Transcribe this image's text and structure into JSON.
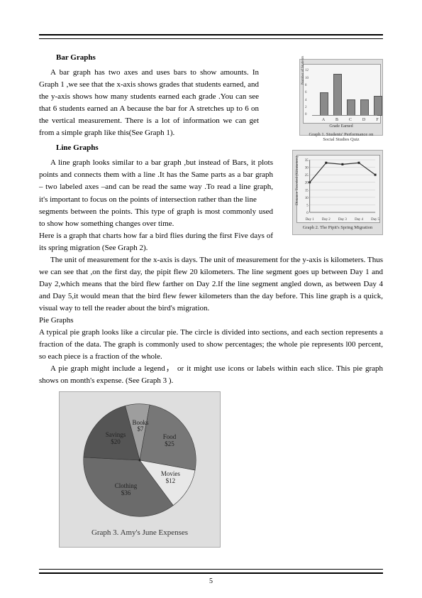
{
  "page_number": "5",
  "sections": {
    "bar": {
      "title": "Bar Graphs",
      "p1": "A bar graph has two axes and uses bars to show amounts. In Graph 1 ,we see that the x-axis shows grades that students earned, and the y-axis shows how many students earned each grade .You can see that 6 students earned an A because the bar for A stretches up to 6 on the vertical measurement. There is a lot of information we can get from a simple graph like this(See Graph 1)."
    },
    "line": {
      "title": "Line Graphs",
      "p1": "A line graph looks similar to a bar graph ,but instead of Bars, it plots points and connects them with a line .It has the Same parts as a bar graph – two labeled axes –and can be read the same way .To read a line graph, it's important to focus on the points of intersection rather than the line",
      "p2": "segments between the points. This type of graph is most commonly used to show how something changes over time.",
      "p3": "Here is a graph that charts how far a bird flies during the first Five days of its spring migration (See Graph 2).",
      "p4": "The unit of measurement for the x-axis is days. The unit of measurement for the y-axis is kilometers. Thus we can see that ,on the first day, the pipit flew 20 kilometers. The line segment goes up between Day 1 and Day 2,which means that the bird flew farther on Day 2.If the line segment angled down, as between Day 4 and Day 5,it would mean that the bird flew fewer  kilometers than the day before. This line graph is a quick, visual way to tell the reader about the bird's migration."
    },
    "pie": {
      "title": "Pie Graphs",
      "p1": "A typical pie graph looks like a circular pie. The circle is divided into sections, and each section represents a fraction of the data. The graph is commonly used to show percentages; the whole pie represents l00 percent, so each piece is a fraction of the whole.",
      "p2": "A pie graph might include a legend， or it might use icons or labels within each slice. This pie graph shows on month's expense. (See Graph 3 )."
    }
  },
  "graph1": {
    "type": "bar",
    "ylabel": "Number of Students",
    "xlabel": "Grade Earned",
    "caption": "Graph 1. Students' Performance on Social Studies Quiz",
    "categories": [
      "A",
      "B",
      "C",
      "D",
      "F"
    ],
    "values": [
      6,
      11,
      4,
      4,
      5
    ],
    "ymax": 12,
    "ytick": 2,
    "bar_color": "#8a8a8a",
    "background": "#f5f5f5"
  },
  "graph2": {
    "type": "line",
    "ylabel": "Distance Traveled (Kilometers)",
    "caption": "Graph 2. The Pipit's Spring Migration",
    "x_labels": [
      "Day 1",
      "Day 2",
      "Day 3",
      "Day 4",
      "Day 5"
    ],
    "values": [
      20,
      33,
      32,
      33,
      25
    ],
    "ymax": 35,
    "ymin": 0,
    "ytick": 5,
    "line_color": "#333333",
    "marker_color": "#222222",
    "background": "#f2f2f2"
  },
  "graph3": {
    "type": "pie",
    "caption": "Graph 3. Amy's June Expenses",
    "slices": [
      {
        "label": "Books",
        "amount": "$7",
        "value": 7,
        "color": "#9e9e9e"
      },
      {
        "label": "Food",
        "amount": "$25",
        "value": 25,
        "color": "#777777"
      },
      {
        "label": "Movies",
        "amount": "$12",
        "value": 12,
        "color": "#e8e8e8"
      },
      {
        "label": "Clothing",
        "amount": "$36",
        "value": 36,
        "color": "#6b6b6b"
      },
      {
        "label": "Savings",
        "amount": "$20",
        "value": 20,
        "color": "#555555"
      }
    ],
    "background": "#dedede"
  }
}
